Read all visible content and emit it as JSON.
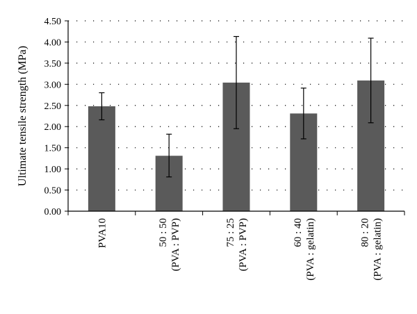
{
  "chart_data": {
    "type": "bar",
    "title": "",
    "ylabel": "Ultimate tensile strength (MPa)",
    "xlabel": "",
    "ylim": [
      0,
      4.5
    ],
    "yticks": [
      "0.00",
      "0.50",
      "1.00",
      "1.50",
      "2.00",
      "2.50",
      "3.00",
      "3.50",
      "4.00",
      "4.50"
    ],
    "grid": "horizontal dotted",
    "bar_color": "#5a5a5a",
    "categories": [
      [
        "PVA10"
      ],
      [
        "50 : 50",
        "(PVA : PVP)"
      ],
      [
        "75 : 25",
        "(PVA : PVP)"
      ],
      [
        "60 : 40",
        "(PVA : gelatin)"
      ],
      [
        "80 : 20",
        "(PVA : gelatin)"
      ]
    ],
    "values": [
      2.48,
      1.31,
      3.04,
      2.31,
      3.09
    ],
    "error_low": [
      2.16,
      0.81,
      1.95,
      1.71,
      2.09
    ],
    "error_high": [
      2.8,
      1.82,
      4.13,
      2.91,
      4.09
    ]
  }
}
